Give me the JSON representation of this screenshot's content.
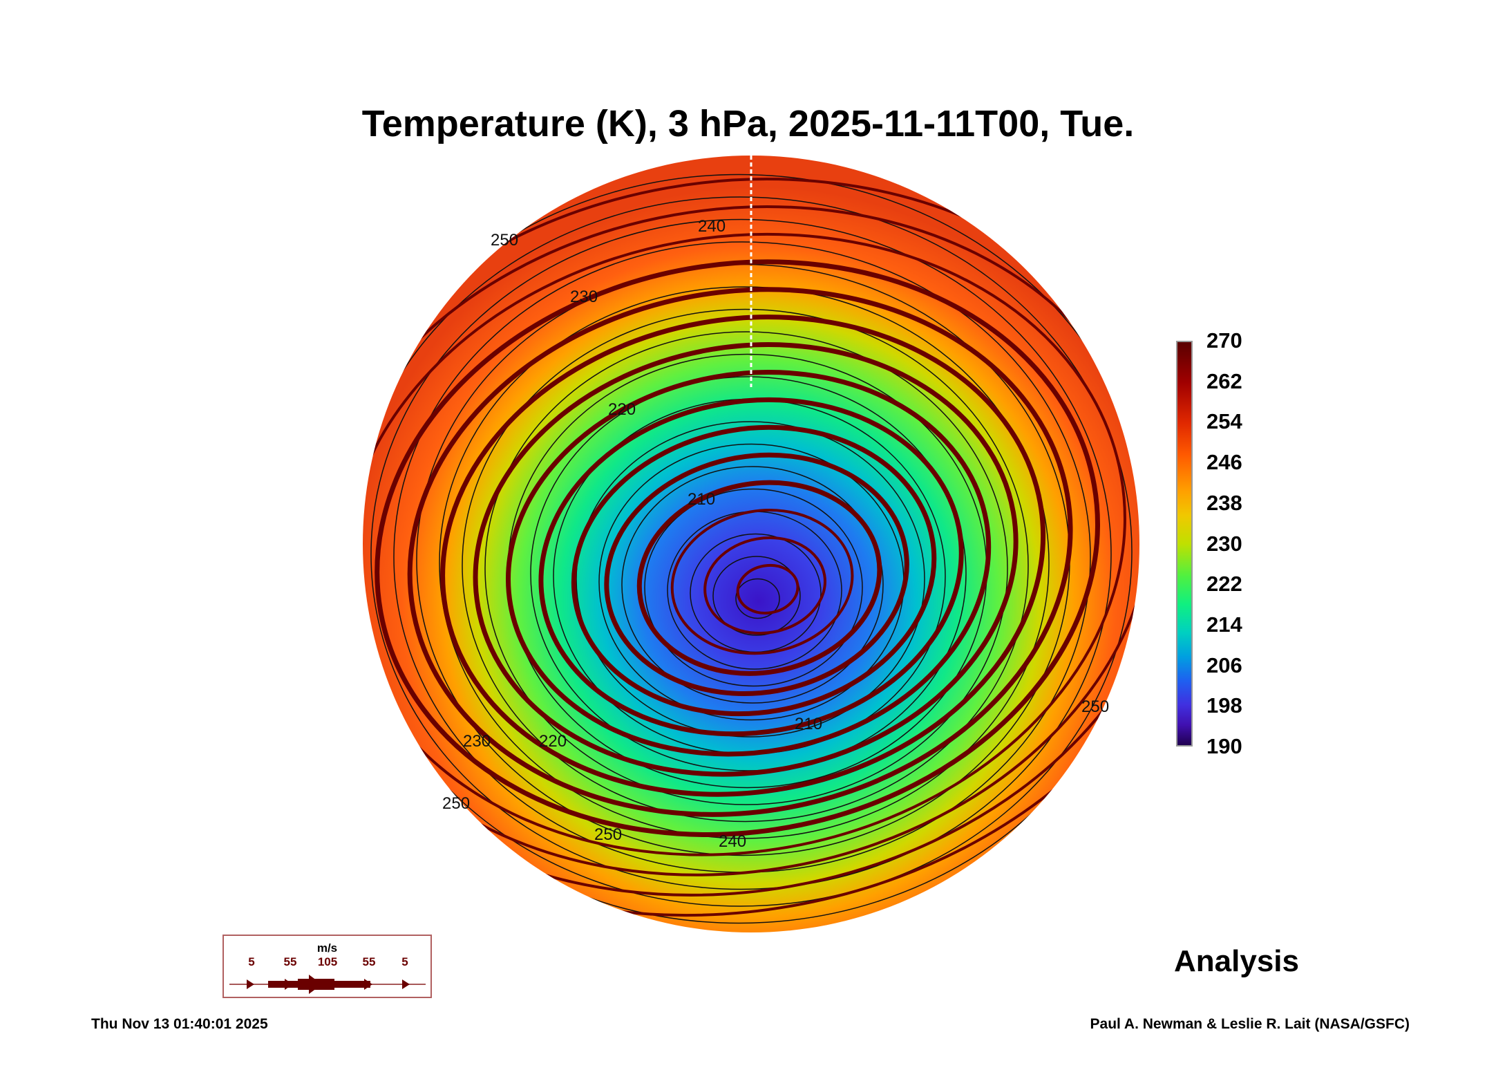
{
  "title": "Temperature (K), 3 hPa, 2025-11-11T00, Tue.",
  "colorbar": {
    "ticks": [
      "270",
      "262",
      "254",
      "246",
      "238",
      "230",
      "222",
      "214",
      "206",
      "198",
      "190"
    ],
    "range": [
      190,
      270
    ]
  },
  "contour_labels": [
    "240",
    "250",
    "230",
    "220",
    "210",
    "220",
    "230",
    "250",
    "240",
    "250",
    "250",
    "210"
  ],
  "wind_legend": {
    "unit": "m/s",
    "values": [
      "5",
      "55",
      "105",
      "55",
      "5"
    ],
    "color": "#6a0000"
  },
  "label": "Analysis",
  "timestamp": "Thu Nov 13 01:40:01 2025",
  "credit": "Paul A. Newman & Leslie R. Lait (NASA/GSFC)"
}
